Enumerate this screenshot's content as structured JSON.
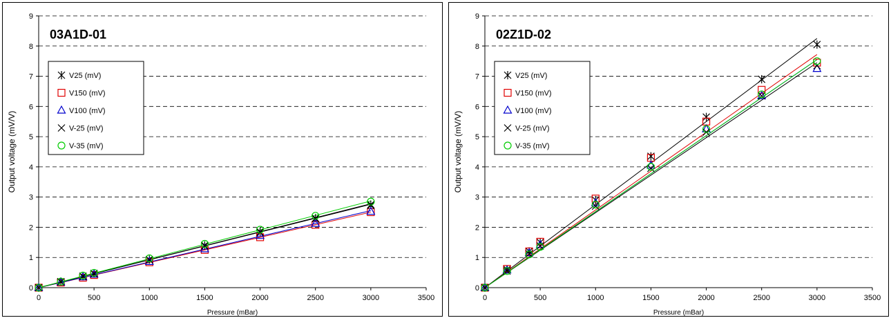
{
  "colors": {
    "V25 (mV)": "#000000",
    "V150 (mV)": "#e00000",
    "V100 (mV)": "#0000cc",
    "V-25 (mV)": "#000000",
    "V-35 (mV)": "#00cc00"
  },
  "chart_data": [
    {
      "type": "scatter",
      "title": "03A1D-01",
      "xlabel": "Pressure (mBar)",
      "ylabel": "Output voltage (mV/V)",
      "xlim": [
        0,
        3500
      ],
      "ylim": [
        0,
        9
      ],
      "x_ticks": [
        "0",
        "500",
        "1000",
        "1500",
        "2000",
        "2500",
        "3000",
        "3500"
      ],
      "y_ticks": [
        "0",
        "1",
        "2",
        "3",
        "4",
        "5",
        "6",
        "7",
        "8",
        "9"
      ],
      "grid": "horizontal dashed",
      "legend_position": "upper-left",
      "x": [
        0,
        200,
        400,
        500,
        1000,
        1500,
        2000,
        2500,
        3000
      ],
      "series": [
        {
          "name": "V25 (mV)",
          "marker": "asterisk",
          "values": [
            0,
            0.2,
            0.38,
            0.47,
            0.93,
            1.4,
            1.85,
            2.3,
            2.75
          ],
          "trend_end": 2.78
        },
        {
          "name": "V150 (mV)",
          "marker": "square",
          "values": [
            0,
            0.17,
            0.33,
            0.42,
            0.84,
            1.25,
            1.67,
            2.08,
            2.5
          ],
          "trend_end": 2.5
        },
        {
          "name": "V100 (mV)",
          "marker": "triangle",
          "values": [
            0,
            0.18,
            0.35,
            0.44,
            0.86,
            1.28,
            1.72,
            2.12,
            2.52
          ],
          "trend_end": 2.55
        },
        {
          "name": "V-25 (mV)",
          "marker": "x",
          "values": [
            0,
            0.19,
            0.37,
            0.46,
            0.92,
            1.38,
            1.83,
            2.28,
            2.72
          ],
          "trend_end": 2.76
        },
        {
          "name": "V-35 (mV)",
          "marker": "circle",
          "values": [
            0,
            0.2,
            0.4,
            0.49,
            0.97,
            1.45,
            1.92,
            2.38,
            2.85
          ],
          "trend_end": 2.87
        }
      ]
    },
    {
      "type": "scatter",
      "title": "02Z1D-02",
      "xlabel": "Pressure (mBar)",
      "ylabel": "Output voltage (mV/V)",
      "xlim": [
        0,
        3500
      ],
      "ylim": [
        0,
        9
      ],
      "x_ticks": [
        "0",
        "500",
        "1000",
        "1500",
        "2000",
        "2500",
        "3000",
        "3500"
      ],
      "y_ticks": [
        "0",
        "1",
        "2",
        "3",
        "4",
        "5",
        "6",
        "7",
        "8",
        "9"
      ],
      "grid": "horizontal dashed",
      "legend_position": "upper-left",
      "x": [
        0,
        200,
        400,
        500,
        1000,
        1500,
        2000,
        2500,
        3000
      ],
      "series": [
        {
          "name": "V25 (mV)",
          "marker": "asterisk",
          "values": [
            0,
            0.6,
            1.2,
            1.5,
            2.9,
            4.35,
            5.65,
            6.9,
            8.05
          ],
          "trend_end": 8.25
        },
        {
          "name": "V150 (mV)",
          "marker": "square",
          "values": [
            0,
            0.62,
            1.2,
            1.52,
            2.95,
            4.3,
            5.5,
            6.55,
            7.45
          ],
          "trend_end": 7.72
        },
        {
          "name": "V100 (mV)",
          "marker": "triangle",
          "values": [
            0,
            0.58,
            1.15,
            1.42,
            2.8,
            4.05,
            5.25,
            6.35,
            7.25
          ],
          "trend_end": 7.55
        },
        {
          "name": "V-25 (mV)",
          "marker": "x",
          "values": [
            0,
            0.55,
            1.12,
            1.38,
            2.7,
            3.95,
            5.15,
            6.35,
            7.35
          ],
          "trend_end": 7.45
        },
        {
          "name": "V-35 (mV)",
          "marker": "circle",
          "values": [
            0,
            0.55,
            1.1,
            1.35,
            2.75,
            4.0,
            5.25,
            6.4,
            7.5
          ],
          "trend_end": 7.55
        }
      ]
    }
  ]
}
